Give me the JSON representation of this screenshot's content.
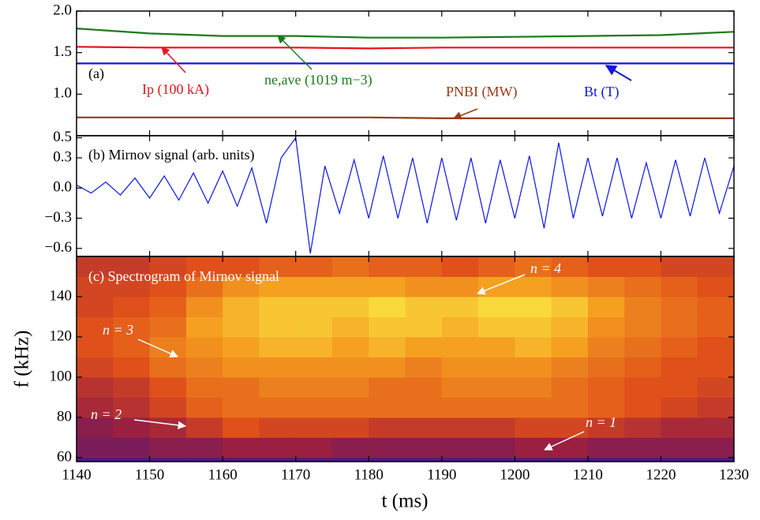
{
  "chart_data": [
    {
      "type": "line",
      "title": "(a)",
      "x": [
        1140,
        1150,
        1160,
        1170,
        1180,
        1190,
        1200,
        1210,
        1220,
        1230
      ],
      "series": [
        {
          "name": "Ip (100 kA)",
          "color": "#e8141c",
          "values": [
            1.57,
            1.56,
            1.56,
            1.56,
            1.55,
            1.56,
            1.56,
            1.56,
            1.56,
            1.56
          ]
        },
        {
          "name": "ne,ave (1019 m−3)",
          "color": "#1a7a1a",
          "values": [
            1.79,
            1.73,
            1.7,
            1.7,
            1.68,
            1.68,
            1.69,
            1.7,
            1.71,
            1.75
          ]
        },
        {
          "name": "Bt (T)",
          "color": "#1414e0",
          "values": [
            1.37,
            1.37,
            1.37,
            1.37,
            1.37,
            1.37,
            1.37,
            1.37,
            1.37,
            1.37
          ]
        },
        {
          "name": "PNBI (MW)",
          "color": "#9a3a12",
          "values": [
            0.72,
            0.72,
            0.72,
            0.72,
            0.72,
            0.71,
            0.71,
            0.71,
            0.71,
            0.71
          ]
        }
      ],
      "xlim": [
        1140,
        1230
      ],
      "ylim": [
        0.5,
        2.0
      ],
      "yticks": [
        {
          "value": 1.0,
          "label": "1.0"
        },
        {
          "value": 1.5,
          "label": "1.5"
        },
        {
          "value": 2.0,
          "label": "2.0"
        }
      ]
    },
    {
      "type": "line",
      "title": "(b) Mirnov signal (arb. units)",
      "x": [
        1140,
        1142,
        1144,
        1146,
        1148,
        1150,
        1152,
        1154,
        1156,
        1158,
        1160,
        1162,
        1164,
        1166,
        1168,
        1170,
        1172,
        1174,
        1176,
        1178,
        1180,
        1182,
        1184,
        1186,
        1188,
        1190,
        1192,
        1194,
        1196,
        1198,
        1200,
        1202,
        1204,
        1206,
        1208,
        1210,
        1212,
        1214,
        1216,
        1218,
        1220,
        1222,
        1224,
        1226,
        1228,
        1230
      ],
      "series": [
        {
          "name": null,
          "color": "#0a14e8",
          "values": [
            0.03,
            -0.05,
            0.06,
            -0.07,
            0.1,
            -0.1,
            0.12,
            -0.12,
            0.15,
            -0.15,
            0.17,
            -0.18,
            0.2,
            -0.35,
            0.3,
            0.5,
            -0.65,
            0.22,
            -0.25,
            0.28,
            -0.3,
            0.32,
            -0.3,
            0.3,
            -0.35,
            0.3,
            -0.32,
            0.3,
            -0.35,
            0.28,
            -0.3,
            0.32,
            -0.4,
            0.45,
            -0.3,
            0.3,
            -0.28,
            0.3,
            -0.3,
            0.25,
            -0.3,
            0.28,
            -0.28,
            0.3,
            -0.25,
            0.22
          ]
        }
      ],
      "xlim": [
        1140,
        1230
      ],
      "ylim": [
        -0.68,
        0.52
      ],
      "yticks": [
        {
          "value": -0.6,
          "label": "−0.6"
        },
        {
          "value": -0.3,
          "label": "−0.3"
        },
        {
          "value": 0,
          "label": "0.0"
        },
        0.3,
        0.5
      ]
    },
    {
      "type": "heatmap",
      "title": "(c) Spectrogram of Mirnov signal",
      "annotations": [
        "n = 4",
        "n = 3",
        "n = 2",
        "n = 1"
      ],
      "xlabel": "t (ms)",
      "ylabel": "f (kHz)",
      "x_bins": [
        1140,
        1145,
        1150,
        1155,
        1160,
        1165,
        1170,
        1175,
        1180,
        1185,
        1190,
        1195,
        1200,
        1205,
        1210,
        1215,
        1220,
        1225,
        1230
      ],
      "y_bins": [
        60,
        70,
        80,
        90,
        100,
        110,
        120,
        130,
        140,
        150,
        160
      ],
      "colormap": [
        "#4a1a80",
        "#9a1f40",
        "#e0501a",
        "#f5a020",
        "#ffff50"
      ],
      "z": [
        [
          0.15,
          0.15,
          0.2,
          0.2,
          0.25,
          0.25,
          0.25,
          0.2,
          0.2,
          0.2,
          0.2,
          0.2,
          0.25,
          0.25,
          0.2,
          0.2,
          0.2,
          0.2
        ],
        [
          0.2,
          0.25,
          0.3,
          0.4,
          0.5,
          0.45,
          0.45,
          0.45,
          0.4,
          0.4,
          0.4,
          0.4,
          0.45,
          0.45,
          0.4,
          0.35,
          0.3,
          0.3
        ],
        [
          0.3,
          0.35,
          0.45,
          0.55,
          0.6,
          0.6,
          0.6,
          0.6,
          0.6,
          0.6,
          0.6,
          0.6,
          0.6,
          0.6,
          0.55,
          0.5,
          0.45,
          0.4
        ],
        [
          0.35,
          0.4,
          0.5,
          0.6,
          0.6,
          0.65,
          0.65,
          0.65,
          0.6,
          0.6,
          0.65,
          0.65,
          0.65,
          0.6,
          0.55,
          0.5,
          0.5,
          0.45
        ],
        [
          0.45,
          0.5,
          0.6,
          0.65,
          0.7,
          0.7,
          0.7,
          0.7,
          0.7,
          0.65,
          0.7,
          0.7,
          0.7,
          0.65,
          0.6,
          0.55,
          0.5,
          0.5
        ],
        [
          0.5,
          0.55,
          0.65,
          0.7,
          0.75,
          0.8,
          0.8,
          0.75,
          0.8,
          0.75,
          0.75,
          0.75,
          0.8,
          0.75,
          0.65,
          0.6,
          0.55,
          0.5
        ],
        [
          0.5,
          0.55,
          0.6,
          0.75,
          0.8,
          0.85,
          0.85,
          0.8,
          0.85,
          0.85,
          0.8,
          0.85,
          0.85,
          0.8,
          0.7,
          0.65,
          0.6,
          0.55
        ],
        [
          0.45,
          0.5,
          0.55,
          0.7,
          0.8,
          0.85,
          0.85,
          0.85,
          0.9,
          0.85,
          0.85,
          0.9,
          0.9,
          0.85,
          0.75,
          0.65,
          0.6,
          0.55
        ],
        [
          0.45,
          0.45,
          0.5,
          0.6,
          0.7,
          0.75,
          0.75,
          0.75,
          0.75,
          0.7,
          0.7,
          0.75,
          0.75,
          0.7,
          0.65,
          0.6,
          0.55,
          0.5
        ],
        [
          0.4,
          0.4,
          0.45,
          0.5,
          0.5,
          0.55,
          0.55,
          0.6,
          0.55,
          0.55,
          0.5,
          0.55,
          0.6,
          0.55,
          0.5,
          0.5,
          0.45,
          0.45
        ]
      ],
      "xlim": [
        1140,
        1230
      ],
      "ylim": [
        58,
        160
      ],
      "xticks": [
        1140,
        1150,
        1160,
        1170,
        1180,
        1190,
        1200,
        1210,
        1220,
        1230
      ],
      "yticks": [
        60,
        80,
        100,
        120,
        140
      ]
    }
  ]
}
